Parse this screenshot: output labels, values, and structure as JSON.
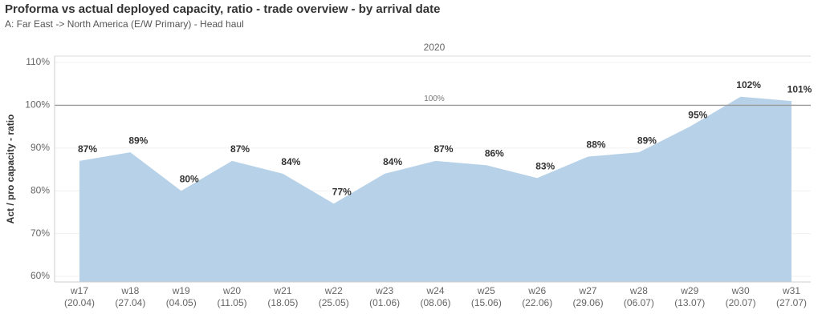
{
  "chart_data": {
    "type": "area",
    "title": "Proforma vs actual deployed capacity, ratio - trade overview - by arrival date",
    "subtitle": "A: Far East -> North America (E/W Primary) - Head haul",
    "header": "2020",
    "y_label": "Act / pro capacity - ratio",
    "categories": [
      "w17 (20.04)",
      "w18 (27.04)",
      "w19 (04.05)",
      "w20 (11.05)",
      "w21 (18.05)",
      "w22 (25.05)",
      "w23 (01.06)",
      "w24 (08.06)",
      "w25 (15.06)",
      "w26 (22.06)",
      "w27 (29.06)",
      "w28 (06.07)",
      "w29 (13.07)",
      "w30 (20.07)",
      "w31 (27.07)"
    ],
    "values": [
      87,
      89,
      80,
      87,
      84,
      77,
      84,
      87,
      86,
      83,
      88,
      89,
      95,
      102,
      101
    ],
    "value_labels": [
      "87%",
      "89%",
      "80%",
      "87%",
      "84%",
      "77%",
      "84%",
      "87%",
      "86%",
      "83%",
      "88%",
      "89%",
      "95%",
      "102%",
      "101%"
    ],
    "color": "#b7d2e8",
    "ylim": [
      58.7,
      111.5
    ],
    "yticks": [
      {
        "value": 60,
        "label": "60%"
      },
      {
        "value": 70,
        "label": "70%"
      },
      {
        "value": 80,
        "label": "80%"
      },
      {
        "value": 90,
        "label": "90%"
      },
      {
        "value": 100,
        "label": "100%"
      },
      {
        "value": 110,
        "label": "110%"
      }
    ],
    "reference_line": {
      "value": 100,
      "label": "100%"
    },
    "grid": true
  }
}
